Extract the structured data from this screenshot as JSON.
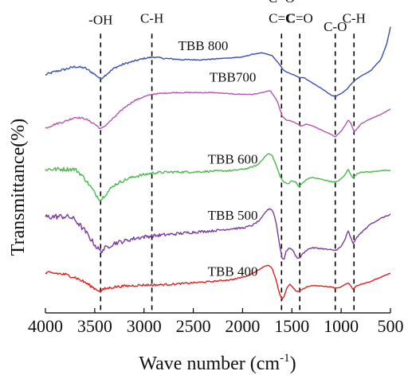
{
  "chart_data": {
    "type": "line",
    "title": "",
    "xlabel": "Wave number (cm",
    "xlabel_sup": "-1",
    "xlabel_close": ")",
    "ylabel": "Transmittance(%)",
    "xlim": [
      4000,
      500
    ],
    "x_reversed": true,
    "x_ticks": [
      4000,
      3500,
      3000,
      2500,
      2000,
      1500,
      1000,
      500
    ],
    "x_tick_labels": [
      "4000",
      "3500",
      "3000",
      "2500",
      "2000",
      "1500",
      "1000",
      "500"
    ],
    "y_ticks_shown": false,
    "grid": false,
    "legend": "none",
    "ylim": [
      -1.0,
      10.2
    ],
    "series": [
      {
        "name": "TBB 800",
        "color": "#3a4fb0",
        "noise": 0.05,
        "points": [
          [
            4000,
            7.7
          ],
          [
            3900,
            7.82
          ],
          [
            3800,
            7.9
          ],
          [
            3700,
            8.0
          ],
          [
            3600,
            7.95
          ],
          [
            3500,
            7.72
          ],
          [
            3440,
            7.55
          ],
          [
            3380,
            7.72
          ],
          [
            3300,
            7.95
          ],
          [
            3200,
            8.1
          ],
          [
            3100,
            8.2
          ],
          [
            3000,
            8.3
          ],
          [
            2900,
            8.35
          ],
          [
            2800,
            8.3
          ],
          [
            2600,
            8.25
          ],
          [
            2400,
            8.25
          ],
          [
            2200,
            8.3
          ],
          [
            2000,
            8.35
          ],
          [
            1900,
            8.45
          ],
          [
            1800,
            8.5
          ],
          [
            1700,
            8.4
          ],
          [
            1620,
            8.05
          ],
          [
            1580,
            7.85
          ],
          [
            1540,
            7.78
          ],
          [
            1500,
            7.72
          ],
          [
            1450,
            7.65
          ],
          [
            1420,
            7.6
          ],
          [
            1380,
            7.6
          ],
          [
            1300,
            7.42
          ],
          [
            1200,
            7.2
          ],
          [
            1100,
            6.95
          ],
          [
            1060,
            6.9
          ],
          [
            1000,
            7.02
          ],
          [
            950,
            7.15
          ],
          [
            900,
            7.35
          ],
          [
            860,
            7.5
          ],
          [
            800,
            7.65
          ],
          [
            700,
            7.85
          ],
          [
            600,
            8.25
          ],
          [
            540,
            8.8
          ],
          [
            500,
            9.45
          ]
        ]
      },
      {
        "name": "TBB700",
        "color": "#b455b4",
        "noise": 0.04,
        "points": [
          [
            4000,
            5.75
          ],
          [
            3900,
            5.9
          ],
          [
            3800,
            6.0
          ],
          [
            3700,
            6.15
          ],
          [
            3600,
            6.1
          ],
          [
            3500,
            5.9
          ],
          [
            3440,
            5.72
          ],
          [
            3400,
            5.82
          ],
          [
            3300,
            6.15
          ],
          [
            3200,
            6.5
          ],
          [
            3100,
            6.75
          ],
          [
            3000,
            6.9
          ],
          [
            2900,
            7.0
          ],
          [
            2700,
            7.05
          ],
          [
            2500,
            7.05
          ],
          [
            2300,
            7.05
          ],
          [
            2100,
            7.0
          ],
          [
            1900,
            6.98
          ],
          [
            1800,
            7.05
          ],
          [
            1720,
            7.12
          ],
          [
            1650,
            6.75
          ],
          [
            1600,
            6.2
          ],
          [
            1560,
            6.05
          ],
          [
            1500,
            6.0
          ],
          [
            1440,
            5.9
          ],
          [
            1400,
            5.82
          ],
          [
            1360,
            5.9
          ],
          [
            1300,
            5.85
          ],
          [
            1200,
            5.68
          ],
          [
            1100,
            5.52
          ],
          [
            1060,
            5.42
          ],
          [
            1000,
            5.65
          ],
          [
            960,
            5.85
          ],
          [
            930,
            6.05
          ],
          [
            900,
            5.92
          ],
          [
            870,
            5.62
          ],
          [
            840,
            5.72
          ],
          [
            800,
            5.9
          ],
          [
            700,
            6.1
          ],
          [
            600,
            6.25
          ],
          [
            500,
            6.45
          ]
        ]
      },
      {
        "name": "TBB 600",
        "color": "#4cb84c",
        "noise": 0.09,
        "points": [
          [
            4000,
            4.25
          ],
          [
            3900,
            4.25
          ],
          [
            3800,
            4.25
          ],
          [
            3700,
            4.25
          ],
          [
            3650,
            4.1
          ],
          [
            3600,
            3.9
          ],
          [
            3540,
            3.6
          ],
          [
            3480,
            3.28
          ],
          [
            3440,
            3.12
          ],
          [
            3400,
            3.3
          ],
          [
            3300,
            3.68
          ],
          [
            3200,
            3.85
          ],
          [
            3100,
            3.98
          ],
          [
            3000,
            4.05
          ],
          [
            2900,
            4.12
          ],
          [
            2700,
            4.15
          ],
          [
            2500,
            4.15
          ],
          [
            2300,
            4.18
          ],
          [
            2100,
            4.2
          ],
          [
            1950,
            4.28
          ],
          [
            1850,
            4.4
          ],
          [
            1780,
            4.68
          ],
          [
            1740,
            4.82
          ],
          [
            1700,
            4.75
          ],
          [
            1660,
            4.4
          ],
          [
            1620,
            3.98
          ],
          [
            1580,
            3.78
          ],
          [
            1540,
            3.72
          ],
          [
            1500,
            3.82
          ],
          [
            1460,
            3.78
          ],
          [
            1430,
            3.6
          ],
          [
            1400,
            3.72
          ],
          [
            1350,
            3.88
          ],
          [
            1300,
            3.95
          ],
          [
            1200,
            3.88
          ],
          [
            1100,
            3.8
          ],
          [
            1050,
            3.78
          ],
          [
            1000,
            3.9
          ],
          [
            960,
            4.05
          ],
          [
            930,
            4.25
          ],
          [
            900,
            4.05
          ],
          [
            880,
            3.92
          ],
          [
            850,
            4.05
          ],
          [
            800,
            4.15
          ],
          [
            700,
            4.15
          ],
          [
            600,
            4.2
          ],
          [
            500,
            4.2
          ]
        ]
      },
      {
        "name": "TBB 500",
        "color": "#7b3aa0",
        "noise": 0.12,
        "points": [
          [
            4000,
            2.5
          ],
          [
            3900,
            2.52
          ],
          [
            3800,
            2.52
          ],
          [
            3750,
            2.5
          ],
          [
            3700,
            2.4
          ],
          [
            3650,
            2.2
          ],
          [
            3600,
            2.0
          ],
          [
            3540,
            1.7
          ],
          [
            3480,
            1.4
          ],
          [
            3440,
            1.25
          ],
          [
            3400,
            1.35
          ],
          [
            3300,
            1.55
          ],
          [
            3200,
            1.62
          ],
          [
            3100,
            1.72
          ],
          [
            3000,
            1.78
          ],
          [
            2900,
            1.82
          ],
          [
            2700,
            1.88
          ],
          [
            2500,
            1.95
          ],
          [
            2300,
            2.0
          ],
          [
            2100,
            2.08
          ],
          [
            2000,
            2.1
          ],
          [
            1900,
            2.2
          ],
          [
            1820,
            2.4
          ],
          [
            1760,
            2.72
          ],
          [
            1720,
            2.82
          ],
          [
            1690,
            2.7
          ],
          [
            1660,
            2.3
          ],
          [
            1630,
            1.6
          ],
          [
            1600,
            1.0
          ],
          [
            1580,
            0.95
          ],
          [
            1560,
            1.25
          ],
          [
            1520,
            1.38
          ],
          [
            1490,
            1.28
          ],
          [
            1450,
            1.02
          ],
          [
            1420,
            1.0
          ],
          [
            1400,
            1.12
          ],
          [
            1350,
            1.3
          ],
          [
            1300,
            1.38
          ],
          [
            1200,
            1.35
          ],
          [
            1100,
            1.3
          ],
          [
            1060,
            1.28
          ],
          [
            1000,
            1.42
          ],
          [
            960,
            1.7
          ],
          [
            930,
            2.0
          ],
          [
            900,
            1.72
          ],
          [
            880,
            1.52
          ],
          [
            850,
            1.72
          ],
          [
            800,
            1.92
          ],
          [
            700,
            2.25
          ],
          [
            600,
            2.45
          ],
          [
            500,
            2.6
          ]
        ]
      },
      {
        "name": "TBB 400",
        "color": "#e02020",
        "noise": 0.07,
        "points": [
          [
            4000,
            0.45
          ],
          [
            3900,
            0.45
          ],
          [
            3800,
            0.4
          ],
          [
            3700,
            0.3
          ],
          [
            3600,
            0.12
          ],
          [
            3540,
            -0.02
          ],
          [
            3480,
            -0.15
          ],
          [
            3440,
            -0.2
          ],
          [
            3400,
            -0.12
          ],
          [
            3300,
            -0.05
          ],
          [
            3200,
            -0.02
          ],
          [
            3100,
            0.0
          ],
          [
            3000,
            0.02
          ],
          [
            2900,
            0.02
          ],
          [
            2700,
            0.05
          ],
          [
            2500,
            0.1
          ],
          [
            2300,
            0.15
          ],
          [
            2100,
            0.22
          ],
          [
            1950,
            0.35
          ],
          [
            1850,
            0.55
          ],
          [
            1780,
            0.7
          ],
          [
            1740,
            0.75
          ],
          [
            1700,
            0.62
          ],
          [
            1660,
            0.2
          ],
          [
            1630,
            -0.25
          ],
          [
            1600,
            -0.52
          ],
          [
            1580,
            -0.4
          ],
          [
            1550,
            -0.08
          ],
          [
            1520,
            0.05
          ],
          [
            1500,
            -0.02
          ],
          [
            1460,
            -0.2
          ],
          [
            1430,
            -0.22
          ],
          [
            1400,
            -0.15
          ],
          [
            1350,
            -0.05
          ],
          [
            1300,
            0.0
          ],
          [
            1200,
            -0.02
          ],
          [
            1100,
            -0.05
          ],
          [
            1060,
            -0.1
          ],
          [
            1000,
            -0.05
          ],
          [
            960,
            0.05
          ],
          [
            930,
            0.1
          ],
          [
            900,
            -0.02
          ],
          [
            880,
            -0.15
          ],
          [
            850,
            -0.02
          ],
          [
            800,
            0.05
          ],
          [
            700,
            0.15
          ],
          [
            600,
            0.3
          ],
          [
            500,
            0.45
          ]
        ]
      }
    ],
    "series_labels": [
      {
        "text": "TBB 800",
        "x": 2400,
        "y": 8.6
      },
      {
        "text": "TBB700",
        "x": 2100,
        "y": 7.45
      },
      {
        "text": "TBB 600",
        "x": 2100,
        "y": 4.45
      },
      {
        "text": "TBB 500",
        "x": 2100,
        "y": 2.4
      },
      {
        "text": "TBB 400",
        "x": 2100,
        "y": 0.35
      }
    ],
    "reference_lines": [
      {
        "x": 3440,
        "label": "-OH",
        "label_y": [
          9.55
        ]
      },
      {
        "x": 2920,
        "label": "C-H",
        "label_y": [
          9.6
        ]
      },
      {
        "x": 1605,
        "label": "C=O / C=C",
        "label_lines": [
          "C=O",
          "C=C"
        ],
        "label_y": [
          10.35,
          9.6
        ]
      },
      {
        "x": 1420,
        "label": "C=O",
        "label_y": [
          9.6
        ]
      },
      {
        "x": 1060,
        "label": "C-O",
        "label_y": [
          9.3
        ]
      },
      {
        "x": 870,
        "label": "C-H",
        "label_y": [
          9.6
        ]
      }
    ]
  }
}
